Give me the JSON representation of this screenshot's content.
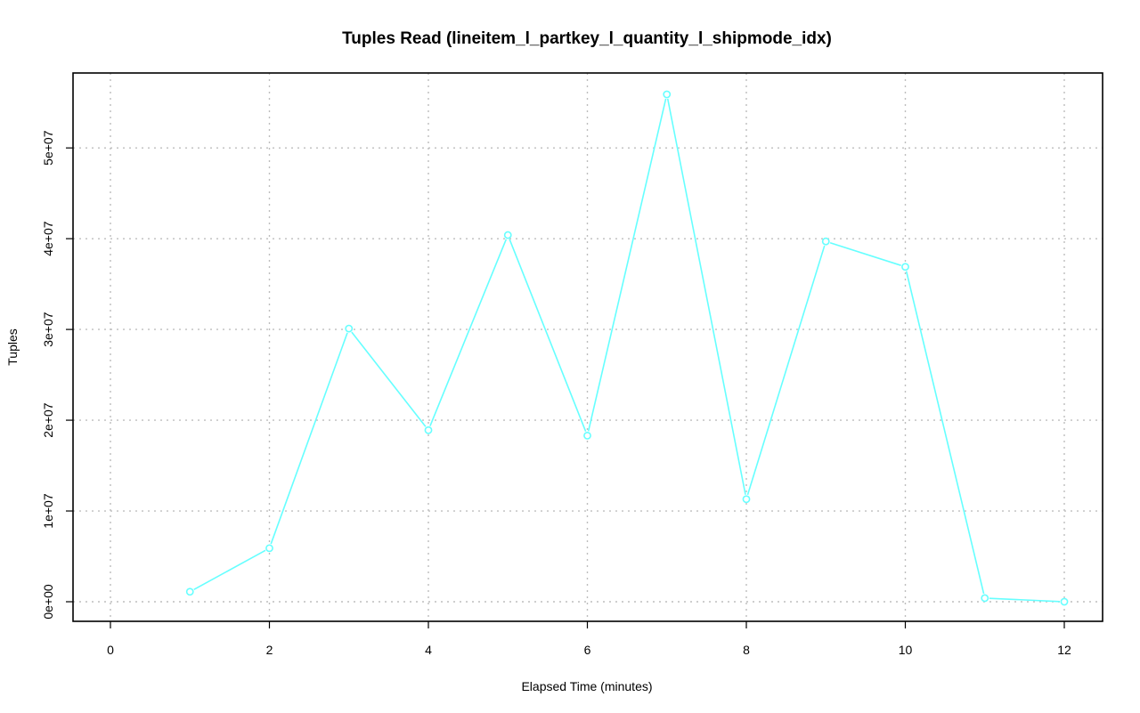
{
  "chart_data": {
    "type": "line",
    "title": "Tuples Read (lineitem_l_partkey_l_quantity_l_shipmode_idx)",
    "xlabel": "Elapsed Time (minutes)",
    "ylabel": "Tuples",
    "xlim": [
      0,
      12
    ],
    "ylim": [
      0,
      56000000
    ],
    "x_ticks": [
      0,
      2,
      4,
      6,
      8,
      10,
      12
    ],
    "x_tick_labels": [
      "0",
      "2",
      "4",
      "6",
      "8",
      "10",
      "12"
    ],
    "y_ticks": [
      0,
      10000000,
      20000000,
      30000000,
      40000000,
      50000000
    ],
    "y_tick_labels": [
      "0e+00",
      "1e+07",
      "2e+07",
      "3e+07",
      "4e+07",
      "5e+07"
    ],
    "grid": true,
    "series": [
      {
        "color": "#66ffff",
        "x": [
          1,
          2,
          3,
          4,
          5,
          6,
          7,
          8,
          9,
          10,
          11,
          12
        ],
        "values": [
          1100000,
          5900000,
          30100000,
          18900000,
          40400000,
          18300000,
          55900000,
          11300000,
          39700000,
          36900000,
          400000,
          0
        ]
      }
    ]
  }
}
